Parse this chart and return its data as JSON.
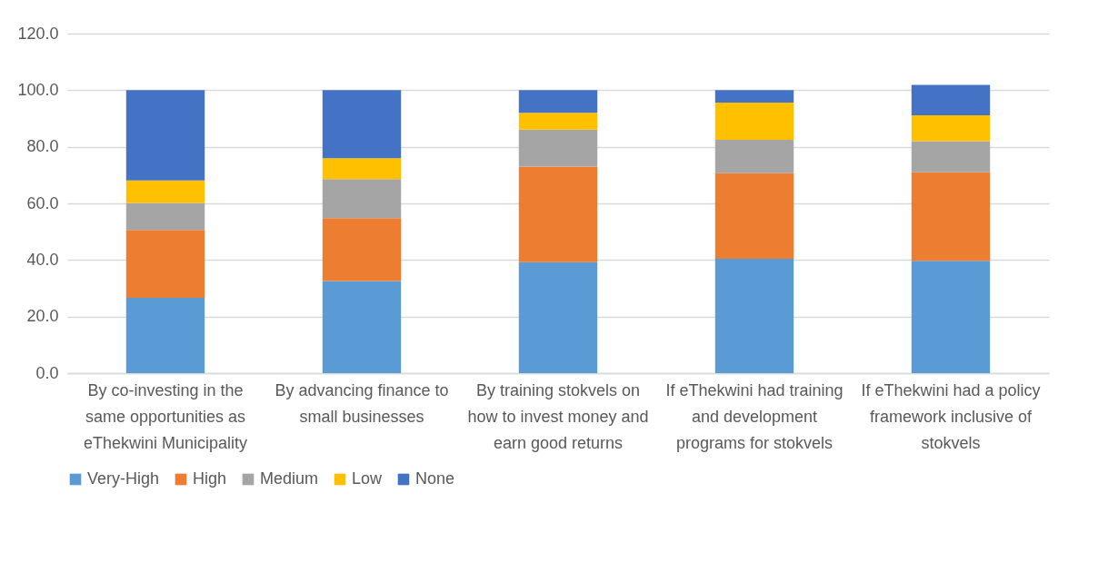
{
  "chart_data": {
    "type": "bar",
    "stacked": true,
    "categories": [
      "By co-investing in the same opportunities as eThekwini Municipality",
      "By advancing finance to small businesses",
      "By training stokvels on how to invest money and earn good returns",
      "If eThekwini had training and development programs for stokvels",
      "If eThekwini had a policy framework inclusive of stokvels"
    ],
    "series": [
      {
        "name": "Very-High",
        "color": "#5b9bd5",
        "values": [
          26.6,
          32.6,
          39.2,
          40.4,
          39.7
        ]
      },
      {
        "name": "High",
        "color": "#ed7d31",
        "values": [
          24.0,
          22.2,
          33.8,
          30.3,
          31.3
        ]
      },
      {
        "name": "Medium",
        "color": "#a5a5a5",
        "values": [
          9.6,
          13.8,
          13.1,
          11.8,
          11.0
        ]
      },
      {
        "name": "Low",
        "color": "#ffc000",
        "values": [
          7.9,
          7.4,
          5.9,
          13.1,
          9.1
        ]
      },
      {
        "name": "None",
        "color": "#4472c4",
        "values": [
          31.9,
          24.0,
          8.0,
          4.4,
          10.8
        ]
      }
    ],
    "ylim": [
      0,
      120
    ],
    "yticks": [
      {
        "value": 0,
        "label": "0.0"
      },
      {
        "value": 20,
        "label": "20.0"
      },
      {
        "value": 40,
        "label": "40.0"
      },
      {
        "value": 60,
        "label": "60.0"
      },
      {
        "value": 80,
        "label": "80.0"
      },
      {
        "value": 100,
        "label": "100.0"
      },
      {
        "value": 120,
        "label": "120.0"
      }
    ],
    "grid": "y",
    "legend": "bottom"
  }
}
